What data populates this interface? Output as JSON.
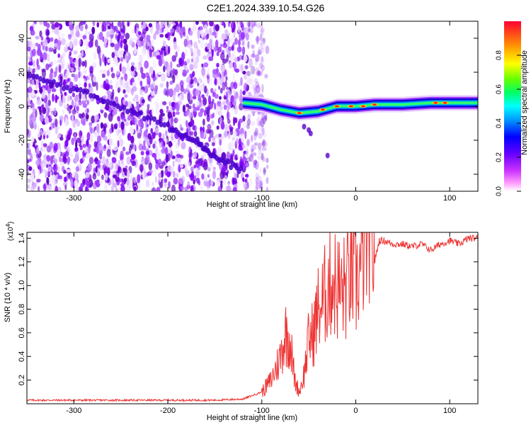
{
  "title": "C2E1.2024.339.10.54.G26",
  "chart_data": [
    {
      "type": "heatmap",
      "xlabel": "Height of straight line (km)",
      "ylabel": "Frequency (Hz)",
      "xlim": [
        -350,
        130
      ],
      "ylim": [
        -50,
        50
      ],
      "xticks": [
        -300,
        -200,
        -100,
        0,
        100
      ],
      "yticks": [
        40,
        20,
        0,
        -20,
        -40
      ],
      "xtick_labels": [
        "-300",
        "-200",
        "-100",
        "0",
        "100"
      ],
      "ytick_labels": [
        "40",
        "20",
        "0",
        "-20",
        "-40"
      ],
      "colorbar": {
        "label": "Normalized spectral amplitude",
        "range": [
          0,
          1
        ],
        "ticks": [
          0.0,
          0.2,
          0.4,
          0.6,
          0.8
        ],
        "tick_labels": [
          "0.0",
          "0.2",
          "0.4",
          "0.6",
          "0.8"
        ],
        "colors": [
          "#ffffff",
          "#ff66ff",
          "#8000ff",
          "#0000ff",
          "#00ffff",
          "#00ff00",
          "#ffff00",
          "#ff8000",
          "#ff0000"
        ]
      },
      "noise_region_x": [
        -350,
        -100
      ],
      "diagonal_trace": [
        [
          -350,
          18
        ],
        [
          -300,
          10
        ],
        [
          -250,
          0
        ],
        [
          -200,
          -12
        ],
        [
          -170,
          -20
        ],
        [
          -150,
          -30
        ],
        [
          -120,
          -38
        ]
      ],
      "signal_band": [
        [
          -120,
          2
        ],
        [
          -100,
          1
        ],
        [
          -80,
          -2
        ],
        [
          -60,
          -4
        ],
        [
          -40,
          -3
        ],
        [
          -20,
          0
        ],
        [
          0,
          0
        ],
        [
          20,
          1
        ],
        [
          50,
          1
        ],
        [
          80,
          2
        ],
        [
          100,
          2
        ],
        [
          130,
          2
        ]
      ],
      "grid": false
    },
    {
      "type": "line",
      "xlabel": "Height of straight line (km)",
      "ylabel": "SNR (10 * v/v)",
      "yscale_label": "(x10",
      "yscale_exp": "4",
      "yscale_close": ")",
      "xlim": [
        -350,
        130
      ],
      "ylim": [
        0,
        1.45
      ],
      "xticks": [
        -300,
        -200,
        -100,
        0,
        100
      ],
      "yticks": [
        0.2,
        0.4,
        0.6,
        0.8,
        1.0,
        1.2,
        1.4
      ],
      "xtick_labels": [
        "-300",
        "-200",
        "-100",
        "0",
        "100"
      ],
      "ytick_labels": [
        "0.2",
        "0.4",
        "0.6",
        "0.8",
        "1.0",
        "1.2",
        "1.4"
      ],
      "color": "#ee3333",
      "x": [
        -350,
        -300,
        -250,
        -200,
        -150,
        -120,
        -100,
        -90,
        -80,
        -75,
        -70,
        -65,
        -60,
        -55,
        -50,
        -45,
        -40,
        -35,
        -30,
        -25,
        -20,
        -15,
        -10,
        -5,
        0,
        5,
        10,
        15,
        20,
        25,
        30,
        40,
        50,
        60,
        70,
        80,
        90,
        100,
        110,
        120,
        130
      ],
      "y": [
        0.03,
        0.03,
        0.03,
        0.03,
        0.03,
        0.04,
        0.1,
        0.2,
        0.4,
        0.6,
        0.55,
        0.2,
        0.1,
        0.25,
        0.55,
        0.6,
        0.8,
        0.85,
        1.0,
        1.05,
        1.0,
        0.95,
        1.0,
        1.1,
        1.0,
        1.15,
        1.25,
        1.35,
        1.2,
        1.38,
        1.38,
        1.35,
        1.35,
        1.33,
        1.35,
        1.3,
        1.35,
        1.38,
        1.35,
        1.4,
        1.4
      ],
      "grid": false
    }
  ]
}
